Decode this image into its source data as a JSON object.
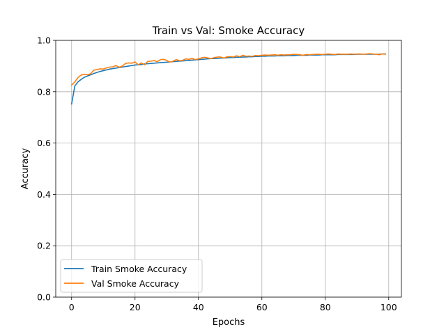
{
  "chart_data": {
    "type": "line",
    "title": "Train vs Val: Smoke Accuracy",
    "xlabel": "Epochs",
    "ylabel": "Accuracy",
    "xlim": [
      -5,
      104
    ],
    "ylim": [
      0.0,
      1.0
    ],
    "xticks": [
      0,
      20,
      40,
      60,
      80,
      100
    ],
    "yticks": [
      0.0,
      0.2,
      0.4,
      0.6,
      0.8,
      1.0
    ],
    "xtick_labels": [
      "0",
      "20",
      "40",
      "60",
      "80",
      "100"
    ],
    "ytick_labels": [
      "0.0",
      "0.2",
      "0.4",
      "0.6",
      "0.8",
      "1.0"
    ],
    "grid": true,
    "legend_position": "lower-left",
    "x": [
      0,
      1,
      2,
      3,
      4,
      5,
      6,
      7,
      8,
      9,
      10,
      11,
      12,
      13,
      14,
      15,
      16,
      17,
      18,
      19,
      20,
      21,
      22,
      23,
      24,
      25,
      26,
      27,
      28,
      29,
      30,
      31,
      32,
      33,
      34,
      35,
      36,
      37,
      38,
      39,
      40,
      41,
      42,
      43,
      44,
      45,
      46,
      47,
      48,
      49,
      50,
      51,
      52,
      53,
      54,
      55,
      56,
      57,
      58,
      59,
      60,
      61,
      62,
      63,
      64,
      65,
      66,
      67,
      68,
      69,
      70,
      71,
      72,
      73,
      74,
      75,
      76,
      77,
      78,
      79,
      80,
      81,
      82,
      83,
      84,
      85,
      86,
      87,
      88,
      89,
      90,
      91,
      92,
      93,
      94,
      95,
      96,
      97,
      98,
      99
    ],
    "series": [
      {
        "name": "Train Smoke Accuracy",
        "color": "#1f77b4",
        "values": [
          0.752,
          0.822,
          0.838,
          0.848,
          0.856,
          0.861,
          0.866,
          0.871,
          0.875,
          0.879,
          0.882,
          0.885,
          0.888,
          0.89,
          0.892,
          0.894,
          0.896,
          0.898,
          0.9,
          0.902,
          0.904,
          0.905,
          0.906,
          0.908,
          0.909,
          0.91,
          0.911,
          0.912,
          0.913,
          0.914,
          0.915,
          0.916,
          0.917,
          0.918,
          0.919,
          0.92,
          0.921,
          0.922,
          0.923,
          0.924,
          0.925,
          0.926,
          0.927,
          0.928,
          0.929,
          0.929,
          0.93,
          0.931,
          0.931,
          0.932,
          0.933,
          0.933,
          0.934,
          0.934,
          0.935,
          0.935,
          0.936,
          0.936,
          0.937,
          0.937,
          0.938,
          0.938,
          0.939,
          0.939,
          0.939,
          0.94,
          0.94,
          0.94,
          0.941,
          0.941,
          0.941,
          0.942,
          0.942,
          0.942,
          0.942,
          0.943,
          0.943,
          0.943,
          0.943,
          0.944,
          0.944,
          0.944,
          0.944,
          0.944,
          0.945,
          0.945,
          0.945,
          0.945,
          0.945,
          0.945,
          0.946,
          0.946,
          0.946,
          0.946,
          0.946,
          0.946,
          0.946,
          0.946,
          0.947,
          0.947
        ]
      },
      {
        "name": "Val Smoke Accuracy",
        "color": "#ff7f0e",
        "values": [
          0.826,
          0.838,
          0.855,
          0.865,
          0.868,
          0.866,
          0.87,
          0.884,
          0.886,
          0.889,
          0.888,
          0.893,
          0.896,
          0.897,
          0.902,
          0.895,
          0.9,
          0.91,
          0.912,
          0.911,
          0.916,
          0.905,
          0.912,
          0.905,
          0.918,
          0.919,
          0.921,
          0.917,
          0.925,
          0.926,
          0.922,
          0.915,
          0.919,
          0.925,
          0.921,
          0.922,
          0.928,
          0.926,
          0.93,
          0.925,
          0.928,
          0.932,
          0.934,
          0.931,
          0.929,
          0.933,
          0.935,
          0.935,
          0.931,
          0.936,
          0.937,
          0.935,
          0.94,
          0.936,
          0.942,
          0.938,
          0.939,
          0.938,
          0.941,
          0.94,
          0.942,
          0.943,
          0.942,
          0.943,
          0.944,
          0.942,
          0.944,
          0.943,
          0.944,
          0.944,
          0.946,
          0.945,
          0.944,
          0.942,
          0.945,
          0.944,
          0.945,
          0.946,
          0.946,
          0.945,
          0.946,
          0.947,
          0.946,
          0.945,
          0.947,
          0.946,
          0.946,
          0.946,
          0.947,
          0.946,
          0.947,
          0.947,
          0.946,
          0.947,
          0.948,
          0.947,
          0.946,
          0.944,
          0.947,
          0.946
        ]
      }
    ]
  }
}
